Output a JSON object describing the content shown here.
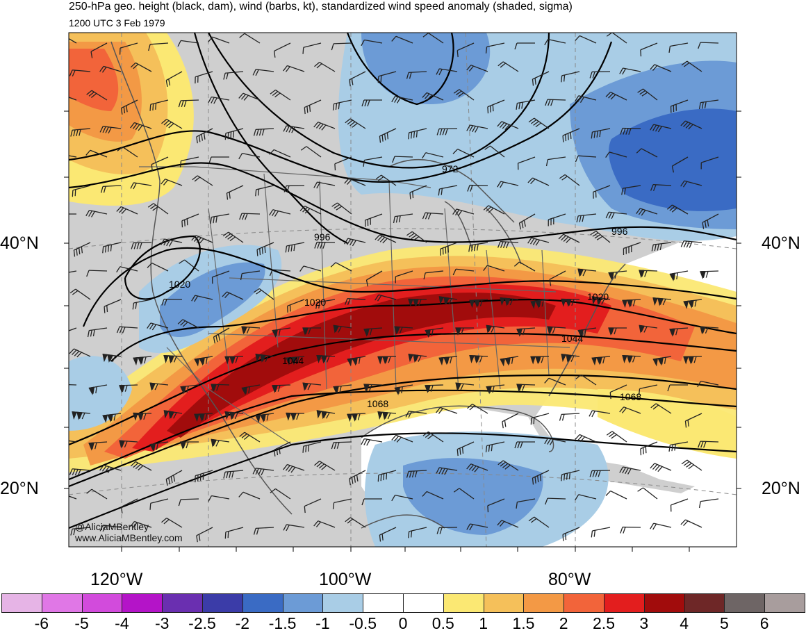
{
  "title": "250-hPa geo. height (black, dam), wind (barbs, kt), standardized wind speed anomaly (shaded, sigma)",
  "valid_time": "1200 UTC 3 Feb 1979",
  "lat_labels": {
    "north40": "40°N",
    "north20": "20°N"
  },
  "lon_labels": {
    "w120": "120°W",
    "w100": "100°W",
    "w80": "80°W"
  },
  "credits": {
    "handle": "@AliciaMBentley",
    "site": "www.AliciaMBentley.com"
  },
  "contour_labels": [
    "972",
    "996",
    "996",
    "1020",
    "1020",
    "1020",
    "1044",
    "1044",
    "1068",
    "1068"
  ],
  "colorbar": {
    "labels": [
      "-6",
      "-5",
      "-4",
      "-3",
      "-2.5",
      "-2",
      "-1.5",
      "-1",
      "-0.5",
      "0",
      "0.5",
      "1",
      "1.5",
      "2",
      "2.5",
      "3",
      "4",
      "5",
      "6"
    ],
    "colors": [
      "#e6b4e6",
      "#e077e6",
      "#d24bdc",
      "#b414c8",
      "#6a2fb0",
      "#3b3ca8",
      "#3a6bc4",
      "#6c9bd6",
      "#a9cde6",
      "#ffffff",
      "#ffffff",
      "#fbe873",
      "#f5c05a",
      "#f39945",
      "#f2643a",
      "#e31e1e",
      "#a10c0c",
      "#6e2727",
      "#6e6565",
      "#a89d9d"
    ]
  },
  "colors": {
    "land": "#cfcfcf",
    "ocean": "#ffffff",
    "contour": "#000000",
    "coast": "#555555"
  }
}
